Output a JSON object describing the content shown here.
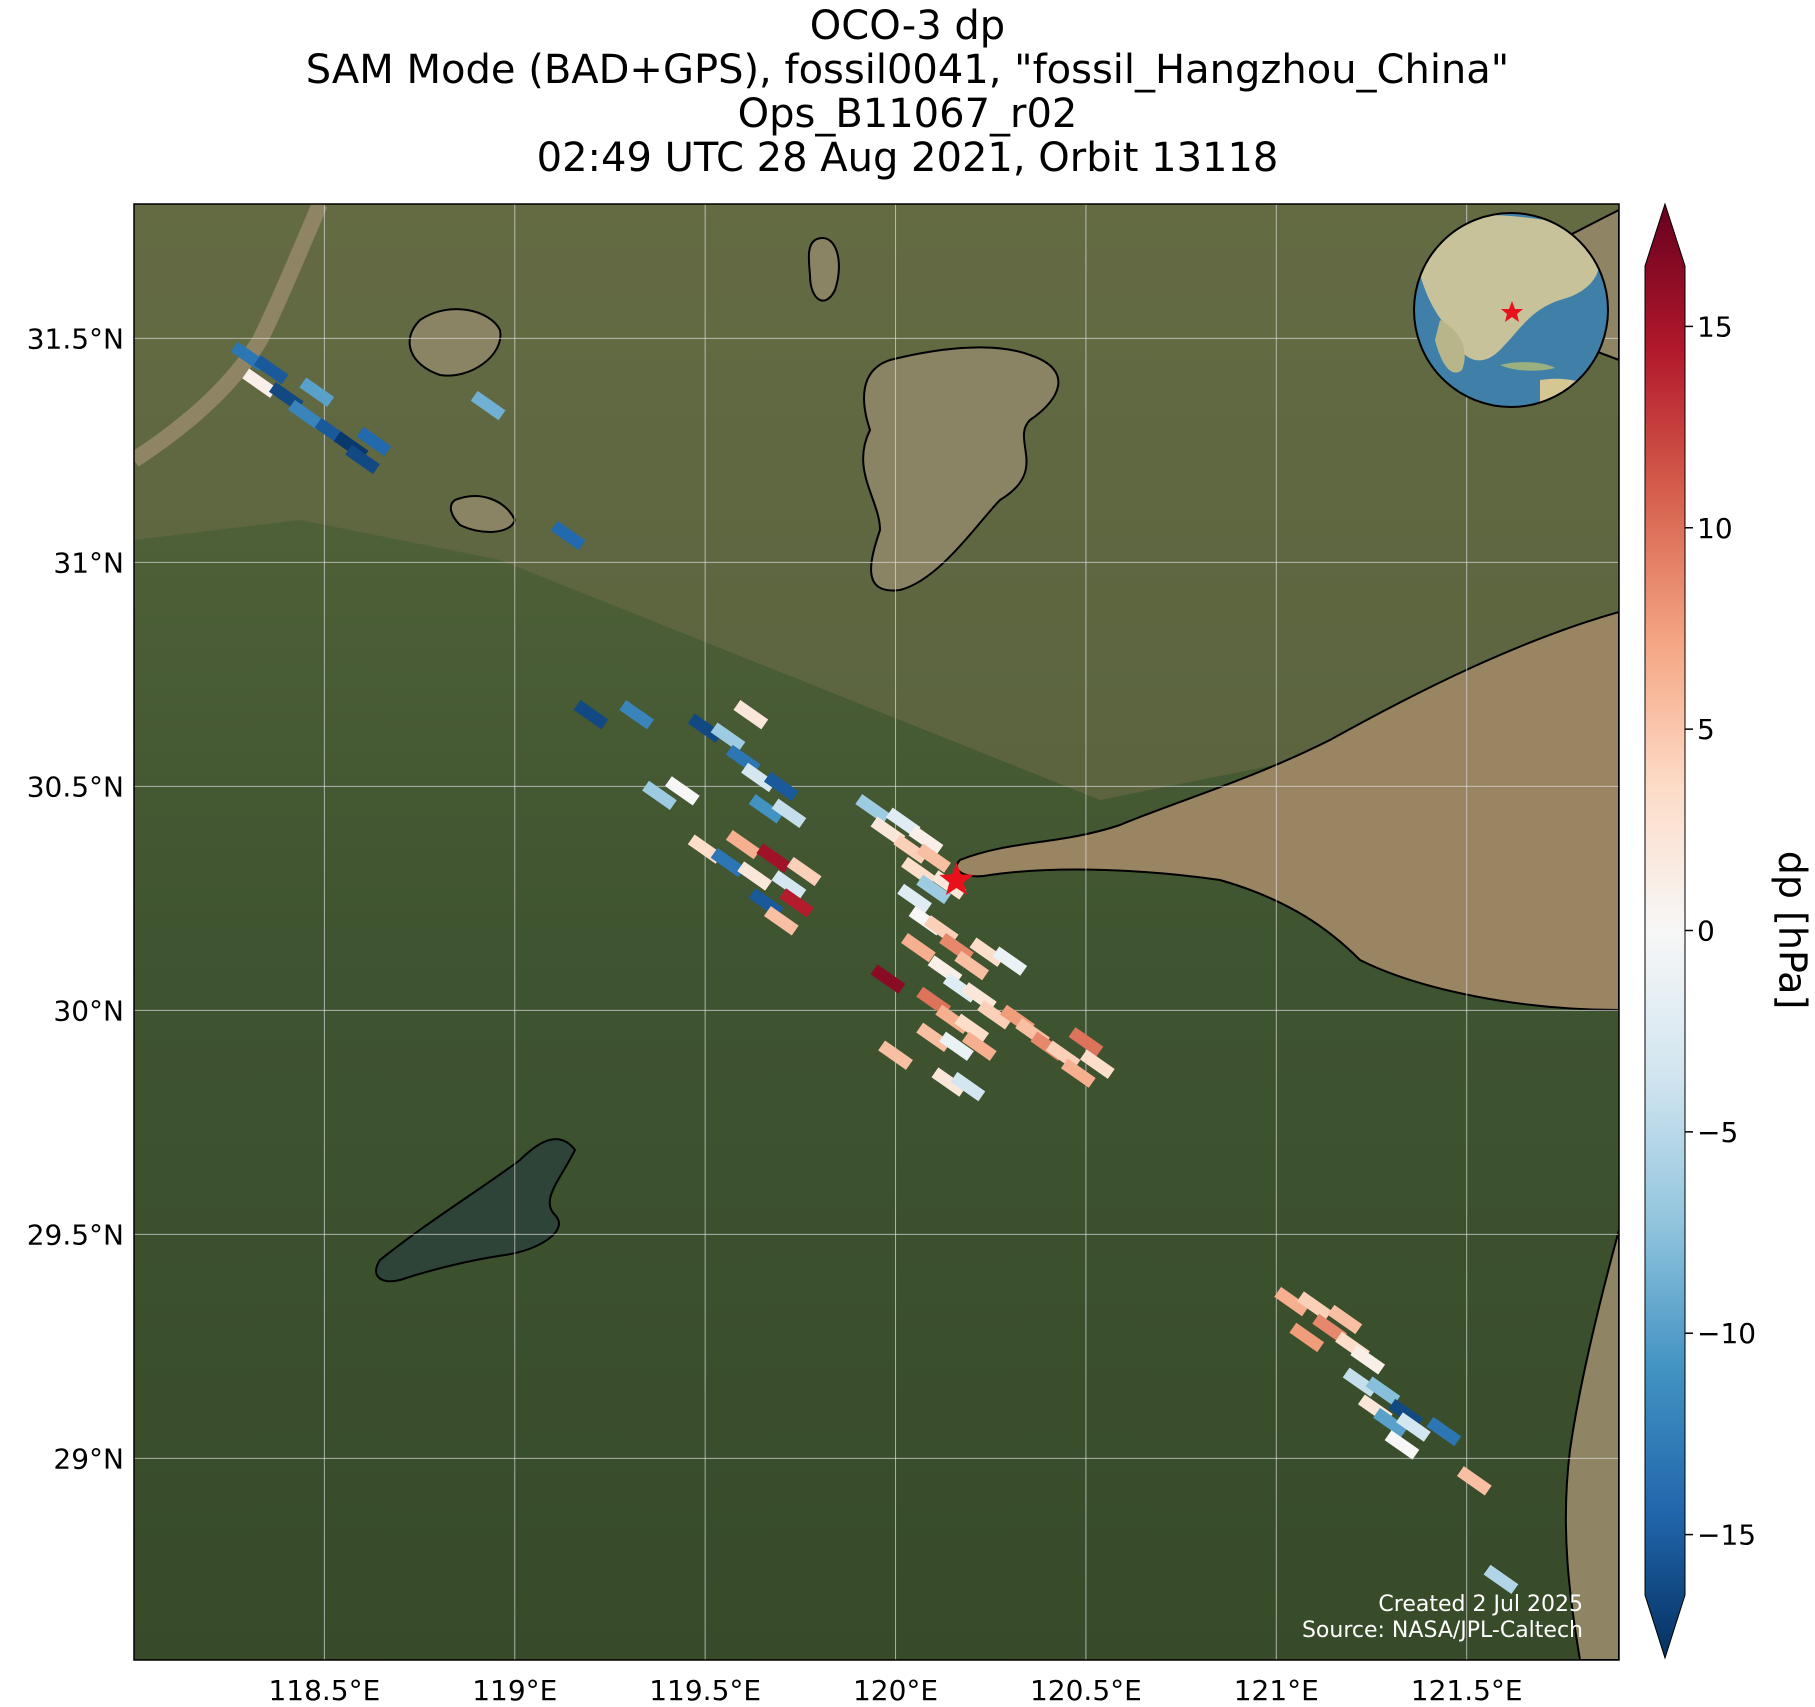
{
  "title": {
    "line1": "OCO-3 dp",
    "line2": "SAM Mode (BAD+GPS), fossil0041, \"fossil_Hangzhou_China\"",
    "line3": "Ops_B11067_r02",
    "line4": "02:49 UTC 28 Aug 2021, Orbit 13118"
  },
  "map": {
    "lon_range": [
      118.0,
      121.9
    ],
    "lat_range": [
      28.55,
      31.8
    ],
    "lon_ticks": [
      {
        "value": 118.5,
        "label": "118.5°E"
      },
      {
        "value": 119.0,
        "label": "119°E"
      },
      {
        "value": 119.5,
        "label": "119.5°E"
      },
      {
        "value": 120.0,
        "label": "120°E"
      },
      {
        "value": 120.5,
        "label": "120.5°E"
      },
      {
        "value": 121.0,
        "label": "121°E"
      },
      {
        "value": 121.5,
        "label": "121.5°E"
      }
    ],
    "lat_ticks": [
      {
        "value": 31.5,
        "label": "31.5°N"
      },
      {
        "value": 31.0,
        "label": "31°N"
      },
      {
        "value": 30.5,
        "label": "30.5°N"
      },
      {
        "value": 30.0,
        "label": "30°N"
      },
      {
        "value": 29.5,
        "label": "29.5°N"
      },
      {
        "value": 29.0,
        "label": "29°N"
      }
    ],
    "target": {
      "lon": 120.16,
      "lat": 30.29,
      "color": "#e8101a"
    },
    "colors": {
      "land": "#4a5a34",
      "water": "#8f8463",
      "coast": "#000000",
      "grid": "#dddddd"
    }
  },
  "colorbar": {
    "label": "dp [hPa]",
    "vmin": -16.5,
    "vmax": 16.5,
    "ticks": [
      {
        "value": 15,
        "label": "15"
      },
      {
        "value": 10,
        "label": "10"
      },
      {
        "value": 5,
        "label": "5"
      },
      {
        "value": 0,
        "label": "0"
      },
      {
        "value": -5,
        "label": "−5"
      },
      {
        "value": -10,
        "label": "−10"
      },
      {
        "value": -15,
        "label": "−15"
      }
    ],
    "colormap": [
      "#053061",
      "#2166ac",
      "#4393c3",
      "#92c5de",
      "#d1e5f0",
      "#f7f7f7",
      "#fddbc7",
      "#f4a582",
      "#d6604d",
      "#b2182b",
      "#67001f"
    ]
  },
  "credits": {
    "created": "Created 2 Jul 2025",
    "source": "Source: NASA/JPL-Caltech"
  },
  "soundings": [
    {
      "lon": 118.3,
      "lat": 31.46,
      "dp": -12
    },
    {
      "lon": 118.36,
      "lat": 31.43,
      "dp": -14
    },
    {
      "lon": 118.33,
      "lat": 31.4,
      "dp": 1
    },
    {
      "lon": 118.4,
      "lat": 31.37,
      "dp": -15
    },
    {
      "lon": 118.45,
      "lat": 31.33,
      "dp": -11
    },
    {
      "lon": 118.52,
      "lat": 31.29,
      "dp": -14
    },
    {
      "lon": 118.57,
      "lat": 31.26,
      "dp": -16
    },
    {
      "lon": 118.6,
      "lat": 31.23,
      "dp": -15
    },
    {
      "lon": 118.63,
      "lat": 31.27,
      "dp": -13
    },
    {
      "lon": 118.48,
      "lat": 31.38,
      "dp": -9
    },
    {
      "lon": 118.93,
      "lat": 31.35,
      "dp": -8
    },
    {
      "lon": 119.14,
      "lat": 31.06,
      "dp": -13
    },
    {
      "lon": 119.2,
      "lat": 30.66,
      "dp": -15
    },
    {
      "lon": 119.32,
      "lat": 30.66,
      "dp": -11
    },
    {
      "lon": 119.38,
      "lat": 30.48,
      "dp": -6
    },
    {
      "lon": 119.44,
      "lat": 30.49,
      "dp": 0
    },
    {
      "lon": 119.5,
      "lat": 30.63,
      "dp": -15
    },
    {
      "lon": 119.56,
      "lat": 30.61,
      "dp": -6
    },
    {
      "lon": 119.6,
      "lat": 30.56,
      "dp": -12
    },
    {
      "lon": 119.64,
      "lat": 30.52,
      "dp": -3
    },
    {
      "lon": 119.66,
      "lat": 30.45,
      "dp": -10
    },
    {
      "lon": 119.62,
      "lat": 30.66,
      "dp": 2
    },
    {
      "lon": 119.7,
      "lat": 30.5,
      "dp": -14
    },
    {
      "lon": 119.72,
      "lat": 30.44,
      "dp": -4
    },
    {
      "lon": 119.5,
      "lat": 30.36,
      "dp": 3
    },
    {
      "lon": 119.56,
      "lat": 30.33,
      "dp": -12
    },
    {
      "lon": 119.6,
      "lat": 30.37,
      "dp": 6
    },
    {
      "lon": 119.63,
      "lat": 30.3,
      "dp": 2
    },
    {
      "lon": 119.68,
      "lat": 30.34,
      "dp": 14
    },
    {
      "lon": 119.72,
      "lat": 30.28,
      "dp": -3
    },
    {
      "lon": 119.74,
      "lat": 30.24,
      "dp": 13
    },
    {
      "lon": 119.66,
      "lat": 30.24,
      "dp": -14
    },
    {
      "lon": 119.76,
      "lat": 30.31,
      "dp": 4
    },
    {
      "lon": 119.7,
      "lat": 30.2,
      "dp": 5
    },
    {
      "lon": 119.94,
      "lat": 30.45,
      "dp": -6
    },
    {
      "lon": 119.98,
      "lat": 30.4,
      "dp": 2
    },
    {
      "lon": 120.02,
      "lat": 30.42,
      "dp": -2
    },
    {
      "lon": 120.04,
      "lat": 30.36,
      "dp": 4
    },
    {
      "lon": 120.08,
      "lat": 30.38,
      "dp": 1
    },
    {
      "lon": 120.06,
      "lat": 30.31,
      "dp": 3
    },
    {
      "lon": 120.1,
      "lat": 30.34,
      "dp": 5
    },
    {
      "lon": 120.1,
      "lat": 30.27,
      "dp": -6
    },
    {
      "lon": 120.14,
      "lat": 30.28,
      "dp": 2
    },
    {
      "lon": 120.05,
      "lat": 30.25,
      "dp": -2
    },
    {
      "lon": 120.08,
      "lat": 30.2,
      "dp": 0
    },
    {
      "lon": 120.12,
      "lat": 30.18,
      "dp": 4
    },
    {
      "lon": 120.06,
      "lat": 30.14,
      "dp": 6
    },
    {
      "lon": 120.16,
      "lat": 30.14,
      "dp": 8
    },
    {
      "lon": 120.2,
      "lat": 30.1,
      "dp": 5
    },
    {
      "lon": 120.24,
      "lat": 30.13,
      "dp": 3
    },
    {
      "lon": 120.3,
      "lat": 30.11,
      "dp": -1
    },
    {
      "lon": 120.13,
      "lat": 30.09,
      "dp": 1
    },
    {
      "lon": 120.17,
      "lat": 30.05,
      "dp": -2
    },
    {
      "lon": 120.22,
      "lat": 30.03,
      "dp": 2
    },
    {
      "lon": 120.1,
      "lat": 30.02,
      "dp": 9
    },
    {
      "lon": 120.15,
      "lat": 29.98,
      "dp": 6
    },
    {
      "lon": 120.2,
      "lat": 29.96,
      "dp": 3
    },
    {
      "lon": 120.26,
      "lat": 29.99,
      "dp": 4
    },
    {
      "lon": 120.1,
      "lat": 29.94,
      "dp": 5
    },
    {
      "lon": 120.16,
      "lat": 29.92,
      "dp": -1
    },
    {
      "lon": 120.22,
      "lat": 29.92,
      "dp": 6
    },
    {
      "lon": 120.14,
      "lat": 29.84,
      "dp": 2
    },
    {
      "lon": 120.19,
      "lat": 29.83,
      "dp": -3
    },
    {
      "lon": 120.32,
      "lat": 29.98,
      "dp": 7
    },
    {
      "lon": 120.36,
      "lat": 29.95,
      "dp": 5
    },
    {
      "lon": 120.4,
      "lat": 29.92,
      "dp": 8
    },
    {
      "lon": 120.44,
      "lat": 29.9,
      "dp": 4
    },
    {
      "lon": 120.48,
      "lat": 29.86,
      "dp": 6
    },
    {
      "lon": 120.5,
      "lat": 29.93,
      "dp": 9
    },
    {
      "lon": 120.53,
      "lat": 29.88,
      "dp": 3
    },
    {
      "lon": 119.98,
      "lat": 30.07,
      "dp": 15
    },
    {
      "lon": 120.0,
      "lat": 29.9,
      "dp": 5
    },
    {
      "lon": 121.04,
      "lat": 29.35,
      "dp": 6
    },
    {
      "lon": 121.1,
      "lat": 29.34,
      "dp": 4
    },
    {
      "lon": 121.14,
      "lat": 29.29,
      "dp": 8
    },
    {
      "lon": 121.18,
      "lat": 29.31,
      "dp": 5
    },
    {
      "lon": 121.2,
      "lat": 29.25,
      "dp": 3
    },
    {
      "lon": 121.08,
      "lat": 29.27,
      "dp": 7
    },
    {
      "lon": 121.24,
      "lat": 29.22,
      "dp": 1
    },
    {
      "lon": 121.22,
      "lat": 29.17,
      "dp": -4
    },
    {
      "lon": 121.28,
      "lat": 29.15,
      "dp": -7
    },
    {
      "lon": 121.26,
      "lat": 29.11,
      "dp": 2
    },
    {
      "lon": 121.3,
      "lat": 29.08,
      "dp": -9
    },
    {
      "lon": 121.34,
      "lat": 29.1,
      "dp": -15
    },
    {
      "lon": 121.36,
      "lat": 29.07,
      "dp": -3
    },
    {
      "lon": 121.33,
      "lat": 29.03,
      "dp": 0
    },
    {
      "lon": 121.44,
      "lat": 29.06,
      "dp": -12
    },
    {
      "lon": 121.52,
      "lat": 28.95,
      "dp": 5
    },
    {
      "lon": 121.59,
      "lat": 28.73,
      "dp": -5
    }
  ]
}
